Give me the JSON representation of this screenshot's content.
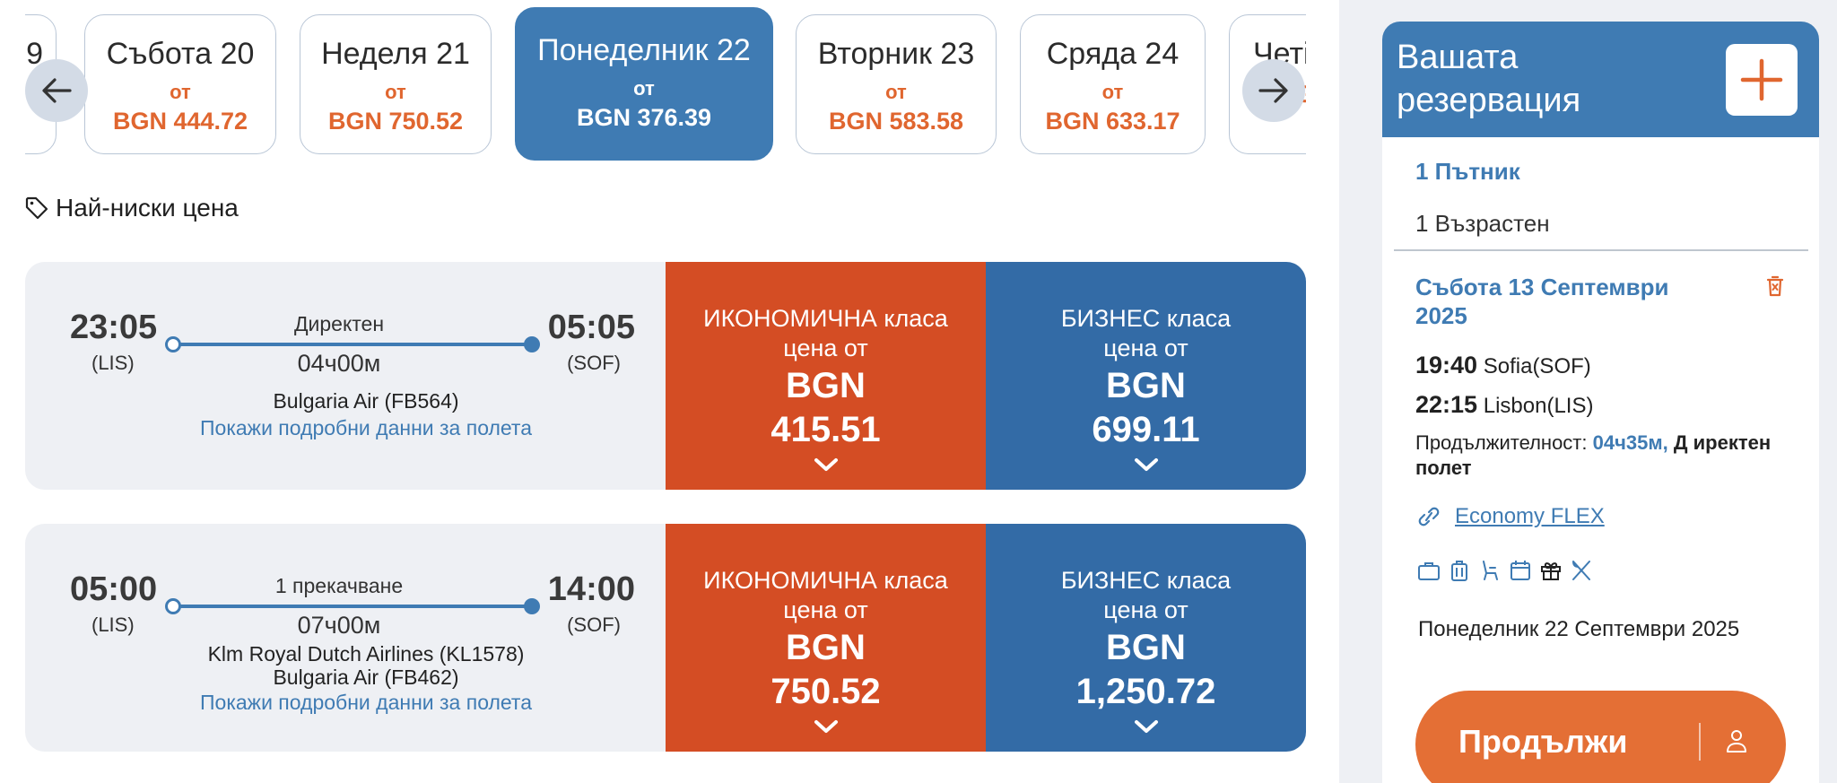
{
  "dates": [
    {
      "label": "9",
      "from": "",
      "price": ""
    },
    {
      "label": "Събота 20",
      "from": "от",
      "price": "BGN 444.72"
    },
    {
      "label": "Неделя 21",
      "from": "от",
      "price": "BGN 750.52"
    },
    {
      "label": "Понеделник 22",
      "from": "от",
      "price": "BGN 376.39"
    },
    {
      "label": "Вторник 23",
      "from": "от",
      "price": "BGN 583.58"
    },
    {
      "label": "Сряда 24",
      "from": "от",
      "price": "BGN 633.17"
    },
    {
      "label": "Четі",
      "from": "",
      "price": "BG"
    }
  ],
  "lowest_price_label": "Най-ниски цена",
  "flights": [
    {
      "dep_time": "23:05",
      "dep_code": "(LIS)",
      "arr_time": "05:05",
      "arr_code": "(SOF)",
      "stops": "Директен",
      "duration": "04ч00м",
      "airline_1": "Bulgaria Air (FB564)",
      "airline_2": "",
      "details": "Покажи подробни данни за полета",
      "economy": {
        "class": "ИКОНОМИЧНА класа",
        "from": "цена от",
        "currency": "BGN",
        "amount": "415.51"
      },
      "business": {
        "class": "БИЗНЕС класа",
        "from": "цена от",
        "currency": "BGN",
        "amount": "699.11"
      }
    },
    {
      "dep_time": "05:00",
      "dep_code": "(LIS)",
      "arr_time": "14:00",
      "arr_code": "(SOF)",
      "stops": "1 прекачване",
      "duration": "07ч00м",
      "airline_1": "Klm Royal Dutch Airlines (KL1578)",
      "airline_2": "Bulgaria Air (FB462)",
      "details": "Покажи подробни данни за полета",
      "economy": {
        "class": "ИКОНОМИЧНА класа",
        "from": "цена от",
        "currency": "BGN",
        "amount": "750.52"
      },
      "business": {
        "class": "БИЗНЕС класа",
        "from": "цена от",
        "currency": "BGN",
        "amount": "1,250.72"
      }
    }
  ],
  "reservation": {
    "title": "Вашата резервация",
    "passengers": "1 Пътник",
    "adult": "1 Възрастен",
    "segment_date": "Събота 13 Септември 2025",
    "dep_time": "19:40",
    "dep_place": "Sofia(SOF)",
    "arr_time": "22:15",
    "arr_place": "Lisbon(LIS)",
    "duration_label": "Продължителност:",
    "duration_value": "04ч35м,",
    "duration_stops": "Д иректен полет",
    "fare_name": "Economy FLEX",
    "return_date": "Понеделник 22 Септември 2025",
    "continue_label": "Продължи"
  },
  "colors": {
    "primary_blue": "#3f7bb3",
    "economy_red": "#d44d24",
    "business_blue": "#336ba6",
    "price_orange": "#e0662f",
    "continue_orange": "#e46f35"
  },
  "icons": [
    "arrow-left-icon",
    "arrow-right-icon",
    "tag-icon",
    "chevron-down-icon",
    "plus-icon",
    "trash-icon",
    "link-icon",
    "briefcase-icon",
    "luggage-icon",
    "seat-icon",
    "calendar-icon",
    "gift-icon",
    "cutlery-icon",
    "user-icon"
  ]
}
